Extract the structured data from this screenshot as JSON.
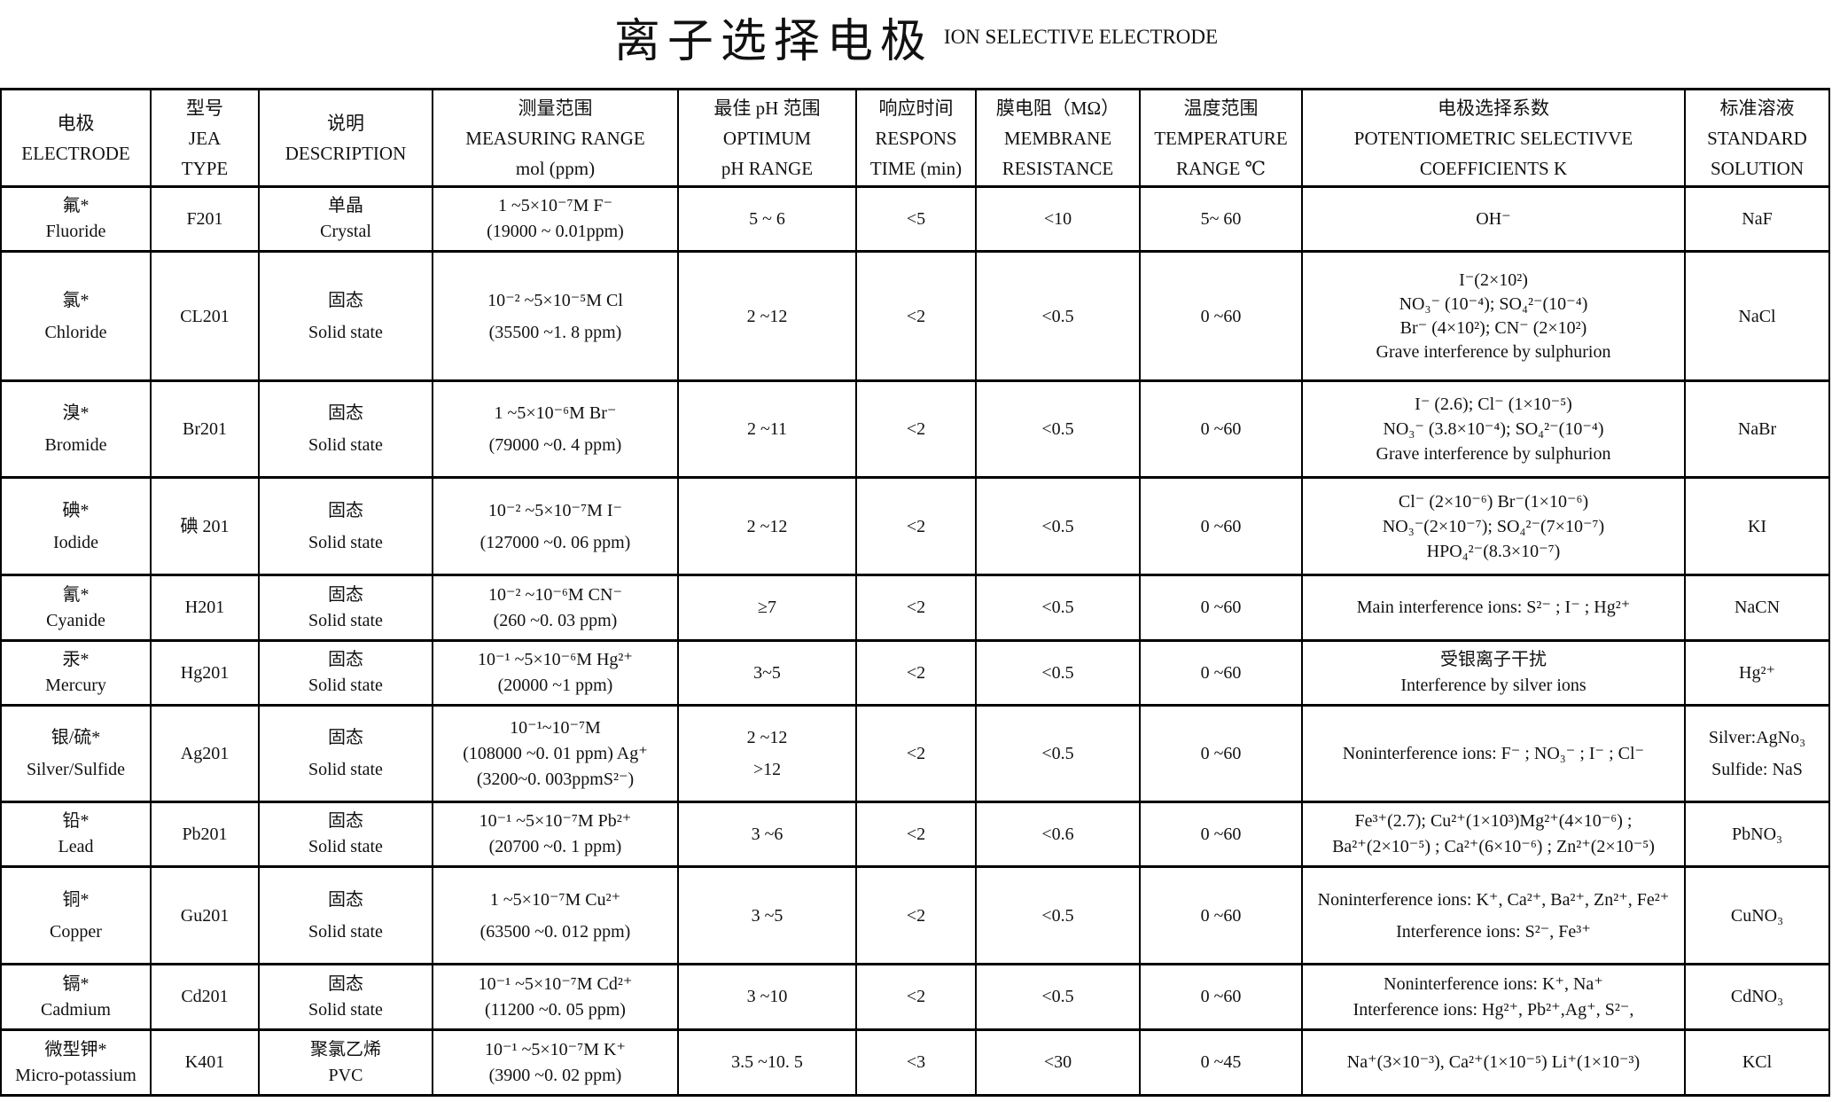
{
  "title": {
    "cn": "离子选择电极",
    "en": "ION SELECTIVE ELECTRODE"
  },
  "headers": [
    [
      "电极",
      "ELECTRODE"
    ],
    [
      "型号",
      "JEA",
      "TYPE"
    ],
    [
      "说明",
      "DESCRIPTION"
    ],
    [
      "测量范围",
      "MEASURING RANGE",
      "mol (ppm)"
    ],
    [
      "最佳 pH 范围",
      "OPTIMUM",
      "pH RANGE"
    ],
    [
      "响应时间",
      "RESPONS",
      "TIME (min)"
    ],
    [
      "膜电阻（MΩ）",
      "MEMBRANE",
      "RESISTANCE"
    ],
    [
      "温度范围",
      "TEMPERATURE",
      "RANGE ℃"
    ],
    [
      "电极选择系数",
      "POTENTIOMETRIC SELECTIVVE",
      "COEFFICIENTS K"
    ],
    [
      "标准溶液",
      "STANDARD",
      "SOLUTION"
    ]
  ],
  "rows": [
    [
      [
        "氟*",
        "Fluoride"
      ],
      [
        "F201"
      ],
      [
        "单晶",
        "Crystal"
      ],
      [
        "1 ~5×10⁻⁷M  F⁻",
        "(19000 ~ 0.01ppm)"
      ],
      [
        "5 ~ 6"
      ],
      [
        "<5"
      ],
      [
        "<10"
      ],
      [
        "5~ 60"
      ],
      [
        "OH⁻"
      ],
      [
        "NaF"
      ]
    ],
    [
      [
        "氯*",
        "Chloride"
      ],
      [
        "CL201"
      ],
      [
        "固态",
        "Solid state"
      ],
      [
        "10⁻² ~5×10⁻⁵M Cl",
        "(35500 ~1. 8 ppm)"
      ],
      [
        "2 ~12"
      ],
      [
        "<2"
      ],
      [
        "<0.5"
      ],
      [
        "0 ~60"
      ],
      [
        "I⁻(2×10²)",
        "NO₃⁻ (10⁻⁴);  SO₄²⁻(10⁻⁴)",
        "Br⁻ (4×10²);  CN⁻ (2×10²)",
        "Grave interference by sulphurion"
      ],
      [
        "NaCl"
      ]
    ],
    [
      [
        "溴*",
        "Bromide"
      ],
      [
        "Br201"
      ],
      [
        "固态",
        "Solid state"
      ],
      [
        "1 ~5×10⁻⁶M Br⁻",
        "(79000 ~0. 4 ppm)"
      ],
      [
        "2 ~11"
      ],
      [
        "<2"
      ],
      [
        "<0.5"
      ],
      [
        "0 ~60"
      ],
      [
        "I⁻ (2.6);   Cl⁻ (1×10⁻⁵)",
        "NO₃⁻ (3.8×10⁻⁴);  SO₄²⁻(10⁻⁴)",
        "Grave interference by sulphurion"
      ],
      [
        "NaBr"
      ]
    ],
    [
      [
        "碘*",
        "Iodide"
      ],
      [
        "碘 201"
      ],
      [
        "固态",
        "Solid state"
      ],
      [
        "10⁻² ~5×10⁻⁷M I⁻",
        "(127000 ~0. 06 ppm)"
      ],
      [
        "2 ~12"
      ],
      [
        "<2"
      ],
      [
        "<0.5"
      ],
      [
        "0 ~60"
      ],
      [
        "Cl⁻ (2×10⁻⁶)  Br⁻(1×10⁻⁶)",
        "NO₃⁻(2×10⁻⁷);  SO₄²⁻(7×10⁻⁷)",
        "HPO₄²⁻(8.3×10⁻⁷)"
      ],
      [
        "KI"
      ]
    ],
    [
      [
        "氰*",
        "Cyanide"
      ],
      [
        "H201"
      ],
      [
        "固态",
        "Solid state"
      ],
      [
        "10⁻² ~10⁻⁶M CN⁻",
        "(260 ~0. 03 ppm)"
      ],
      [
        "≥7"
      ],
      [
        "<2"
      ],
      [
        "<0.5"
      ],
      [
        "0 ~60"
      ],
      [
        "Main interference ions: S²⁻ ;  I⁻ ;  Hg²⁺"
      ],
      [
        "NaCN"
      ]
    ],
    [
      [
        "汞*",
        "Mercury"
      ],
      [
        "Hg201"
      ],
      [
        "固态",
        "Solid state"
      ],
      [
        "10⁻¹ ~5×10⁻⁶M Hg²⁺",
        "(20000 ~1 ppm)"
      ],
      [
        "3~5"
      ],
      [
        "<2"
      ],
      [
        "<0.5"
      ],
      [
        "0 ~60"
      ],
      [
        "受银离子干扰",
        "Interference by silver ions"
      ],
      [
        "Hg²⁺"
      ]
    ],
    [
      [
        "银/硫*",
        "Silver/Sulfide"
      ],
      [
        "Ag201"
      ],
      [
        "固态",
        "Solid state"
      ],
      [
        "10⁻¹~10⁻⁷M",
        "(108000 ~0. 01 ppm) Ag⁺",
        "(3200~0. 003ppmS²⁻)"
      ],
      [
        "2 ~12",
        ">12"
      ],
      [
        "<2"
      ],
      [
        "<0.5"
      ],
      [
        "0 ~60"
      ],
      [
        "Noninterference ions: F⁻ ;  NO₃⁻ ;  I⁻ ;  Cl⁻"
      ],
      [
        "Silver:AgNo₃",
        "Sulfide: NaS"
      ]
    ],
    [
      [
        "铅*",
        "Lead"
      ],
      [
        "Pb201"
      ],
      [
        "固态",
        "Solid state"
      ],
      [
        "10⁻¹ ~5×10⁻⁷M Pb²⁺",
        "(20700 ~0. 1 ppm)"
      ],
      [
        "3 ~6"
      ],
      [
        "<2"
      ],
      [
        "<0.6"
      ],
      [
        "0 ~60"
      ],
      [
        "Fe³⁺(2.7);  Cu²⁺(1×10³)Mg²⁺(4×10⁻⁶) ;",
        "Ba²⁺(2×10⁻⁵) ; Ca²⁺(6×10⁻⁶) ; Zn²⁺(2×10⁻⁵)"
      ],
      [
        "PbNO₃"
      ]
    ],
    [
      [
        "铜*",
        "Copper"
      ],
      [
        "Gu201"
      ],
      [
        "固态",
        "Solid state"
      ],
      [
        "1 ~5×10⁻⁷M Cu²⁺",
        "(63500 ~0. 012 ppm)"
      ],
      [
        "3 ~5"
      ],
      [
        "<2"
      ],
      [
        "<0.5"
      ],
      [
        "0 ~60"
      ],
      [
        "Noninterference ions: K⁺, Ca²⁺, Ba²⁺, Zn²⁺, Fe²⁺",
        "Interference ions: S²⁻, Fe³⁺"
      ],
      [
        "CuNO₃"
      ]
    ],
    [
      [
        "镉*",
        "Cadmium"
      ],
      [
        "Cd201"
      ],
      [
        "固态",
        "Solid state"
      ],
      [
        "10⁻¹ ~5×10⁻⁷M Cd²⁺",
        "(11200 ~0. 05 ppm)"
      ],
      [
        "3 ~10"
      ],
      [
        "<2"
      ],
      [
        "<0.5"
      ],
      [
        "0 ~60"
      ],
      [
        "Noninterference ions: K⁺, Na⁺",
        "Interference ions: Hg²⁺, Pb²⁺,Ag⁺, S²⁻,"
      ],
      [
        "CdNO₃"
      ]
    ],
    [
      [
        "微型钾*",
        "Micro-potassium"
      ],
      [
        "K401"
      ],
      [
        "聚氯乙烯",
        "PVC"
      ],
      [
        "10⁻¹ ~5×10⁻⁷M K⁺",
        "(3900 ~0. 02 ppm)"
      ],
      [
        "3.5 ~10. 5"
      ],
      [
        "<3"
      ],
      [
        "<30"
      ],
      [
        "0 ~45"
      ],
      [
        "Na⁺(3×10⁻³), Ca²⁺(1×10⁻⁵) Li⁺(1×10⁻³)"
      ],
      [
        "KCl"
      ]
    ]
  ]
}
